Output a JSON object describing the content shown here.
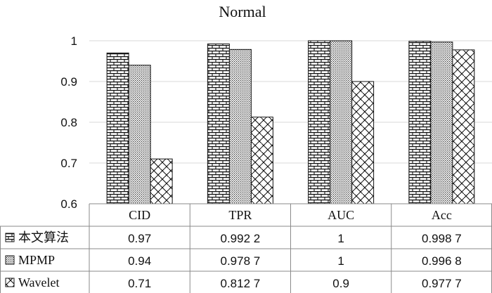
{
  "chart_data": {
    "type": "bar",
    "title": "Normal",
    "categories": [
      "CID",
      "TPR",
      "AUC",
      "Acc"
    ],
    "ylim": [
      0.6,
      1.0
    ],
    "yticks": [
      "0.6",
      "0.7",
      "0.8",
      "0.9",
      "1"
    ],
    "grid": true,
    "legend": "table-left",
    "series": [
      {
        "name": "本文算法",
        "pattern": "brick-icon",
        "values": [
          0.97,
          0.9922,
          1,
          0.9987
        ],
        "labels": [
          "0.97",
          "0.992 2",
          "1",
          "0.998 7"
        ]
      },
      {
        "name": "MPMP",
        "pattern": "dots-icon",
        "values": [
          0.94,
          0.9787,
          1,
          0.9968
        ],
        "labels": [
          "0.94",
          "0.978 7",
          "1",
          "0.996 8"
        ]
      },
      {
        "name": "Wavelet",
        "pattern": "weave-icon",
        "values": [
          0.71,
          0.8127,
          0.9,
          0.9777
        ],
        "labels": [
          "0.71",
          "0.812 7",
          "0.9",
          "0.977 7"
        ]
      }
    ]
  }
}
